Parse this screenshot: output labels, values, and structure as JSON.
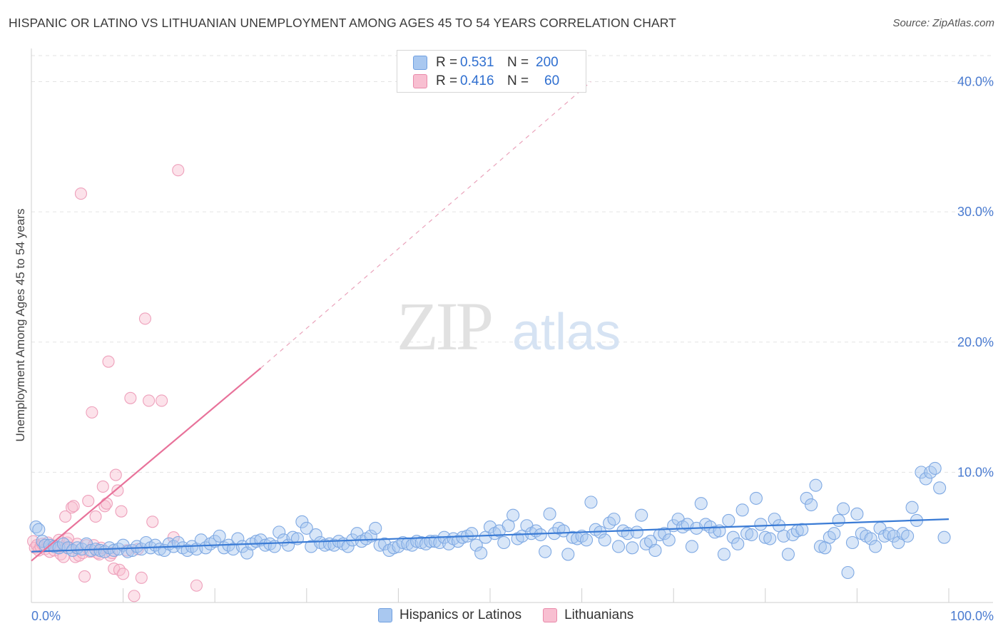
{
  "title": "HISPANIC OR LATINO VS LITHUANIAN UNEMPLOYMENT AMONG AGES 45 TO 54 YEARS CORRELATION CHART",
  "source": "Source: ZipAtlas.com",
  "watermark": {
    "zip": "ZIP",
    "atlas": "atlas"
  },
  "legend_top": [
    {
      "r_label": "R =",
      "r_value": "0.531",
      "n_label": "N =",
      "n_value": "200",
      "color": "#a9c8f0",
      "border": "#6f9fe0"
    },
    {
      "r_label": "R =",
      "r_value": "0.416",
      "n_label": "N =",
      "n_value": "60",
      "color": "#f8bfd1",
      "border": "#e98aaa"
    }
  ],
  "legend_bottom": [
    {
      "label": "Hispanics or Latinos",
      "color": "#a9c8f0",
      "border": "#6f9fe0"
    },
    {
      "label": "Lithuanians",
      "color": "#f8bfd1",
      "border": "#e98aaa"
    }
  ],
  "colors": {
    "blue": "#3a7bd5",
    "pink": "#e8729a",
    "grid": "#e3e3e3",
    "axis_text": "#4a7bd0"
  },
  "chart_data": {
    "type": "scatter",
    "title": "HISPANIC OR LATINO VS LITHUANIAN UNEMPLOYMENT AMONG AGES 45 TO 54 YEARS CORRELATION CHART",
    "xlabel": "",
    "ylabel": "Unemployment Among Ages 45 to 54 years",
    "xlim": [
      0,
      100
    ],
    "ylim": [
      0,
      42
    ],
    "x_tick_labels": [
      "0.0%",
      "100.0%"
    ],
    "y_ticks": [
      10,
      20,
      30,
      40
    ],
    "y_tick_labels": [
      "10.0%",
      "20.0%",
      "30.0%",
      "40.0%"
    ],
    "grid": true,
    "legend_position": "top-center",
    "series": [
      {
        "name": "Hispanics or Latinos",
        "r": 0.531,
        "n": 200,
        "trend": {
          "x": [
            0,
            100
          ],
          "y": [
            3.9,
            6.4
          ]
        },
        "points": [
          [
            0.5,
            5.8
          ],
          [
            0.8,
            5.6
          ],
          [
            1.2,
            4.7
          ],
          [
            1.5,
            4.4
          ],
          [
            2.0,
            4.4
          ],
          [
            2.5,
            4.3
          ],
          [
            3.0,
            4.2
          ],
          [
            3.5,
            4.5
          ],
          [
            4.0,
            4.2
          ],
          [
            4.5,
            4.0
          ],
          [
            5.0,
            4.2
          ],
          [
            5.5,
            4.1
          ],
          [
            6.0,
            4.5
          ],
          [
            6.5,
            4.0
          ],
          [
            7.0,
            4.1
          ],
          [
            7.5,
            4.0
          ],
          [
            8.0,
            3.9
          ],
          [
            8.5,
            4.2
          ],
          [
            9.0,
            4.0
          ],
          [
            9.5,
            4.1
          ],
          [
            10.0,
            4.4
          ],
          [
            10.5,
            3.9
          ],
          [
            11.0,
            4.0
          ],
          [
            11.5,
            4.3
          ],
          [
            12.0,
            4.1
          ],
          [
            12.5,
            4.6
          ],
          [
            13.0,
            4.2
          ],
          [
            13.5,
            4.4
          ],
          [
            14.0,
            4.1
          ],
          [
            14.5,
            4.0
          ],
          [
            15.0,
            4.5
          ],
          [
            15.5,
            4.3
          ],
          [
            16.0,
            4.6
          ],
          [
            16.5,
            4.2
          ],
          [
            17.0,
            4.0
          ],
          [
            17.5,
            4.3
          ],
          [
            18.0,
            4.1
          ],
          [
            18.5,
            4.8
          ],
          [
            19.0,
            4.2
          ],
          [
            19.5,
            4.5
          ],
          [
            20.0,
            4.7
          ],
          [
            20.5,
            5.1
          ],
          [
            21.0,
            4.2
          ],
          [
            21.5,
            4.4
          ],
          [
            22.0,
            4.1
          ],
          [
            22.5,
            4.9
          ],
          [
            23.0,
            4.3
          ],
          [
            23.5,
            3.8
          ],
          [
            24.0,
            4.5
          ],
          [
            24.5,
            4.7
          ],
          [
            25.0,
            4.8
          ],
          [
            25.5,
            4.4
          ],
          [
            26.0,
            4.5
          ],
          [
            26.5,
            4.3
          ],
          [
            27.0,
            5.4
          ],
          [
            27.5,
            4.8
          ],
          [
            28.0,
            4.4
          ],
          [
            28.5,
            5.0
          ],
          [
            29.0,
            4.9
          ],
          [
            29.5,
            6.2
          ],
          [
            30.0,
            5.7
          ],
          [
            30.5,
            4.3
          ],
          [
            31.0,
            5.2
          ],
          [
            31.5,
            4.6
          ],
          [
            32.0,
            4.4
          ],
          [
            32.5,
            4.5
          ],
          [
            33.0,
            4.4
          ],
          [
            33.5,
            4.7
          ],
          [
            34.0,
            4.5
          ],
          [
            34.5,
            4.3
          ],
          [
            35.0,
            4.8
          ],
          [
            35.5,
            5.3
          ],
          [
            36.0,
            4.7
          ],
          [
            36.5,
            4.9
          ],
          [
            37.0,
            5.1
          ],
          [
            37.5,
            5.7
          ],
          [
            38.0,
            4.4
          ],
          [
            38.5,
            4.5
          ],
          [
            39.0,
            4.0
          ],
          [
            39.5,
            4.2
          ],
          [
            40.0,
            4.3
          ],
          [
            40.5,
            4.6
          ],
          [
            41.0,
            4.5
          ],
          [
            41.5,
            4.4
          ],
          [
            42.0,
            4.7
          ],
          [
            42.5,
            4.6
          ],
          [
            43.0,
            4.5
          ],
          [
            43.5,
            4.7
          ],
          [
            44.0,
            4.7
          ],
          [
            44.5,
            4.6
          ],
          [
            45.0,
            5.0
          ],
          [
            45.5,
            4.5
          ],
          [
            46.0,
            4.9
          ],
          [
            46.5,
            4.7
          ],
          [
            47.0,
            5.0
          ],
          [
            47.5,
            5.1
          ],
          [
            48.0,
            5.3
          ],
          [
            48.5,
            4.4
          ],
          [
            49.0,
            3.8
          ],
          [
            49.5,
            5.0
          ],
          [
            50.0,
            5.8
          ],
          [
            50.5,
            5.3
          ],
          [
            51.0,
            5.5
          ],
          [
            51.5,
            4.6
          ],
          [
            52.0,
            5.9
          ],
          [
            52.5,
            6.7
          ],
          [
            53.0,
            4.9
          ],
          [
            53.5,
            5.1
          ],
          [
            54.0,
            5.9
          ],
          [
            54.5,
            5.3
          ],
          [
            55.0,
            5.5
          ],
          [
            55.5,
            5.2
          ],
          [
            56.0,
            3.9
          ],
          [
            56.5,
            6.8
          ],
          [
            57.0,
            5.3
          ],
          [
            57.5,
            5.7
          ],
          [
            58.0,
            5.5
          ],
          [
            58.5,
            3.7
          ],
          [
            59.0,
            5.0
          ],
          [
            59.5,
            4.9
          ],
          [
            60.0,
            5.1
          ],
          [
            60.5,
            4.8
          ],
          [
            61.0,
            7.7
          ],
          [
            61.5,
            5.6
          ],
          [
            62.0,
            5.4
          ],
          [
            62.5,
            4.8
          ],
          [
            63.0,
            6.1
          ],
          [
            63.5,
            6.4
          ],
          [
            64.0,
            4.3
          ],
          [
            64.5,
            5.5
          ],
          [
            65.0,
            5.3
          ],
          [
            65.5,
            4.2
          ],
          [
            66.0,
            5.4
          ],
          [
            66.5,
            6.7
          ],
          [
            67.0,
            4.5
          ],
          [
            67.5,
            4.7
          ],
          [
            68.0,
            4.0
          ],
          [
            68.5,
            5.2
          ],
          [
            69.0,
            5.3
          ],
          [
            69.5,
            4.8
          ],
          [
            70.0,
            5.9
          ],
          [
            70.5,
            6.4
          ],
          [
            71.0,
            5.8
          ],
          [
            71.5,
            6.0
          ],
          [
            72.0,
            4.3
          ],
          [
            72.5,
            5.7
          ],
          [
            73.0,
            7.6
          ],
          [
            73.5,
            6.0
          ],
          [
            74.0,
            5.8
          ],
          [
            74.5,
            5.4
          ],
          [
            75.0,
            5.5
          ],
          [
            75.5,
            3.7
          ],
          [
            76.0,
            6.3
          ],
          [
            76.5,
            5.0
          ],
          [
            77.0,
            4.5
          ],
          [
            77.5,
            7.1
          ],
          [
            78.0,
            5.3
          ],
          [
            78.5,
            5.2
          ],
          [
            79.0,
            8.0
          ],
          [
            79.5,
            6.0
          ],
          [
            80.0,
            5.0
          ],
          [
            80.5,
            4.9
          ],
          [
            81.0,
            6.4
          ],
          [
            81.5,
            5.9
          ],
          [
            82.0,
            5.1
          ],
          [
            82.5,
            3.7
          ],
          [
            83.0,
            5.2
          ],
          [
            83.5,
            5.5
          ],
          [
            84.0,
            5.6
          ],
          [
            84.5,
            8.0
          ],
          [
            85.0,
            7.5
          ],
          [
            85.5,
            9.0
          ],
          [
            86.0,
            4.3
          ],
          [
            86.5,
            4.2
          ],
          [
            87.0,
            5.0
          ],
          [
            87.5,
            5.3
          ],
          [
            88.0,
            6.3
          ],
          [
            88.5,
            7.2
          ],
          [
            89.0,
            2.3
          ],
          [
            89.5,
            4.6
          ],
          [
            90.0,
            6.8
          ],
          [
            90.5,
            5.3
          ],
          [
            91.0,
            5.1
          ],
          [
            91.5,
            4.9
          ],
          [
            92.0,
            4.3
          ],
          [
            92.5,
            5.7
          ],
          [
            93.0,
            5.1
          ],
          [
            93.5,
            5.3
          ],
          [
            94.0,
            5.1
          ],
          [
            94.5,
            4.6
          ],
          [
            95.0,
            5.3
          ],
          [
            95.5,
            5.1
          ],
          [
            96.0,
            7.3
          ],
          [
            96.5,
            6.3
          ],
          [
            97.0,
            10.0
          ],
          [
            97.5,
            9.5
          ],
          [
            98.0,
            10.0
          ],
          [
            98.5,
            10.3
          ],
          [
            99.0,
            8.8
          ],
          [
            99.5,
            5.0
          ]
        ]
      },
      {
        "name": "Lithuanians",
        "r": 0.416,
        "n": 60,
        "trend": {
          "x": [
            0,
            25
          ],
          "y": [
            3.2,
            18.0
          ]
        },
        "trend_extension": {
          "x": [
            25,
            61
          ],
          "y": [
            18.0,
            40.0
          ]
        },
        "points": [
          [
            0.2,
            4.7
          ],
          [
            0.4,
            4.2
          ],
          [
            0.6,
            4.4
          ],
          [
            0.8,
            4.0
          ],
          [
            1.0,
            4.3
          ],
          [
            1.2,
            4.5
          ],
          [
            1.5,
            4.1
          ],
          [
            1.8,
            4.6
          ],
          [
            2.0,
            3.9
          ],
          [
            2.2,
            4.4
          ],
          [
            2.5,
            4.0
          ],
          [
            2.8,
            4.3
          ],
          [
            3.0,
            4.8
          ],
          [
            3.2,
            3.7
          ],
          [
            3.5,
            3.5
          ],
          [
            3.7,
            6.6
          ],
          [
            3.9,
            4.6
          ],
          [
            4.0,
            4.9
          ],
          [
            4.2,
            4.2
          ],
          [
            4.4,
            7.3
          ],
          [
            4.6,
            7.4
          ],
          [
            4.8,
            3.5
          ],
          [
            5.0,
            4.5
          ],
          [
            5.2,
            3.6
          ],
          [
            5.4,
            31.4
          ],
          [
            5.6,
            3.8
          ],
          [
            5.8,
            2.0
          ],
          [
            6.0,
            4.4
          ],
          [
            6.2,
            7.8
          ],
          [
            6.4,
            3.9
          ],
          [
            6.6,
            14.6
          ],
          [
            6.8,
            4.4
          ],
          [
            7.0,
            6.6
          ],
          [
            7.2,
            3.8
          ],
          [
            7.4,
            3.7
          ],
          [
            7.6,
            4.2
          ],
          [
            7.8,
            8.9
          ],
          [
            8.0,
            7.4
          ],
          [
            8.2,
            7.6
          ],
          [
            8.4,
            18.5
          ],
          [
            8.6,
            3.6
          ],
          [
            8.8,
            3.8
          ],
          [
            9.0,
            2.6
          ],
          [
            9.2,
            9.8
          ],
          [
            9.4,
            8.6
          ],
          [
            9.6,
            2.5
          ],
          [
            9.8,
            7.0
          ],
          [
            10.0,
            2.2
          ],
          [
            10.4,
            4.0
          ],
          [
            10.8,
            15.7
          ],
          [
            11.2,
            0.5
          ],
          [
            11.6,
            4.1
          ],
          [
            12.0,
            1.9
          ],
          [
            12.4,
            21.8
          ],
          [
            12.8,
            15.5
          ],
          [
            13.2,
            6.2
          ],
          [
            14.2,
            15.5
          ],
          [
            15.5,
            5.0
          ],
          [
            16.0,
            33.2
          ],
          [
            18.0,
            1.3
          ]
        ]
      }
    ]
  }
}
